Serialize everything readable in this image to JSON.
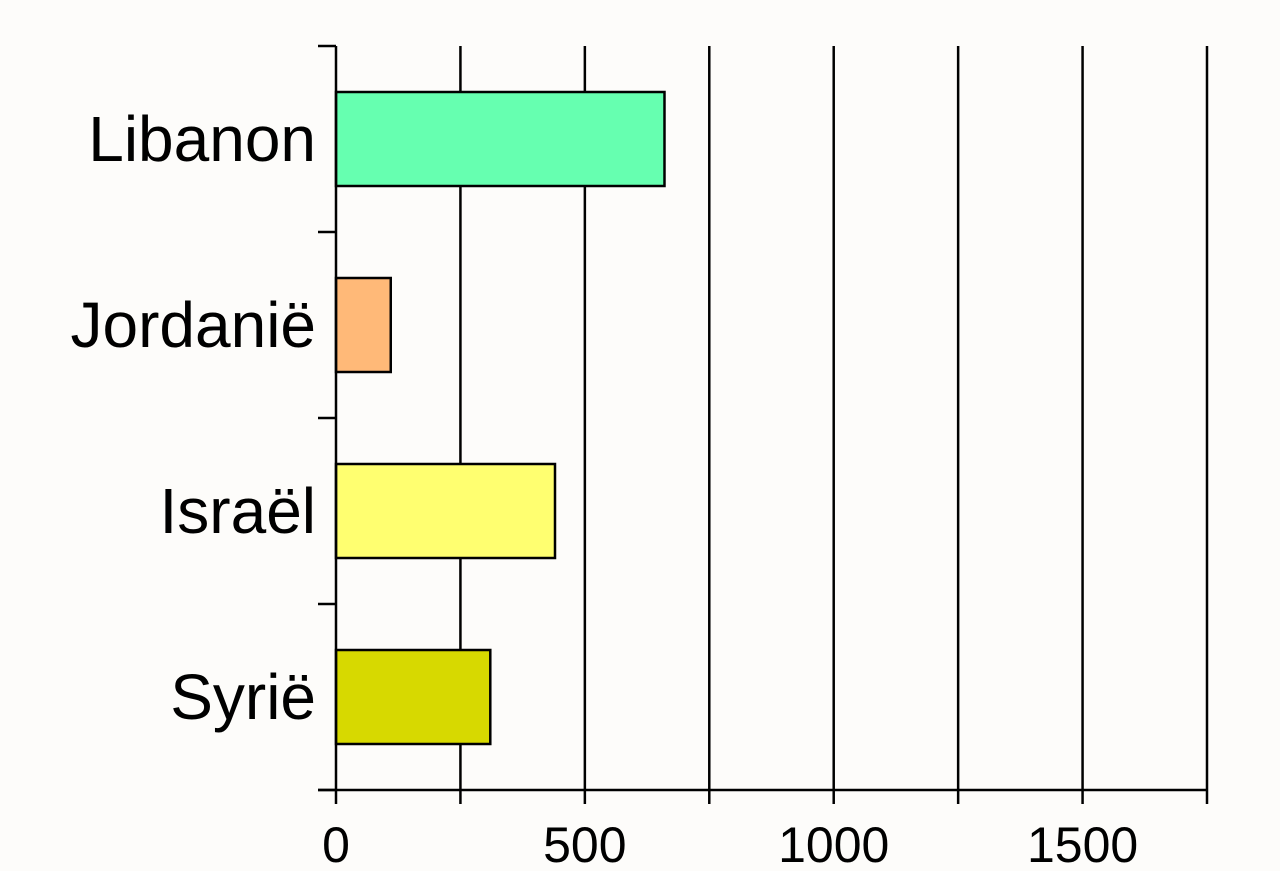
{
  "chart_data": {
    "type": "bar",
    "orientation": "horizontal",
    "categories": [
      "Libanon",
      "Jordanië",
      "Israël",
      "Syrië"
    ],
    "values": [
      660,
      110,
      440,
      310
    ],
    "colors": [
      "#66ffb0",
      "#ffb978",
      "#ffff70",
      "#d7d900"
    ],
    "xlim": [
      0,
      1750
    ],
    "x_ticks": [
      0,
      250,
      500,
      750,
      1000,
      1250,
      1500,
      1750
    ],
    "x_tick_labels": [
      {
        "value": 0,
        "label": "0"
      },
      {
        "value": 500,
        "label": "500"
      },
      {
        "value": 1000,
        "label": "1000"
      },
      {
        "value": 1500,
        "label": "1500"
      }
    ],
    "grid": "vertical",
    "legend": "none"
  }
}
